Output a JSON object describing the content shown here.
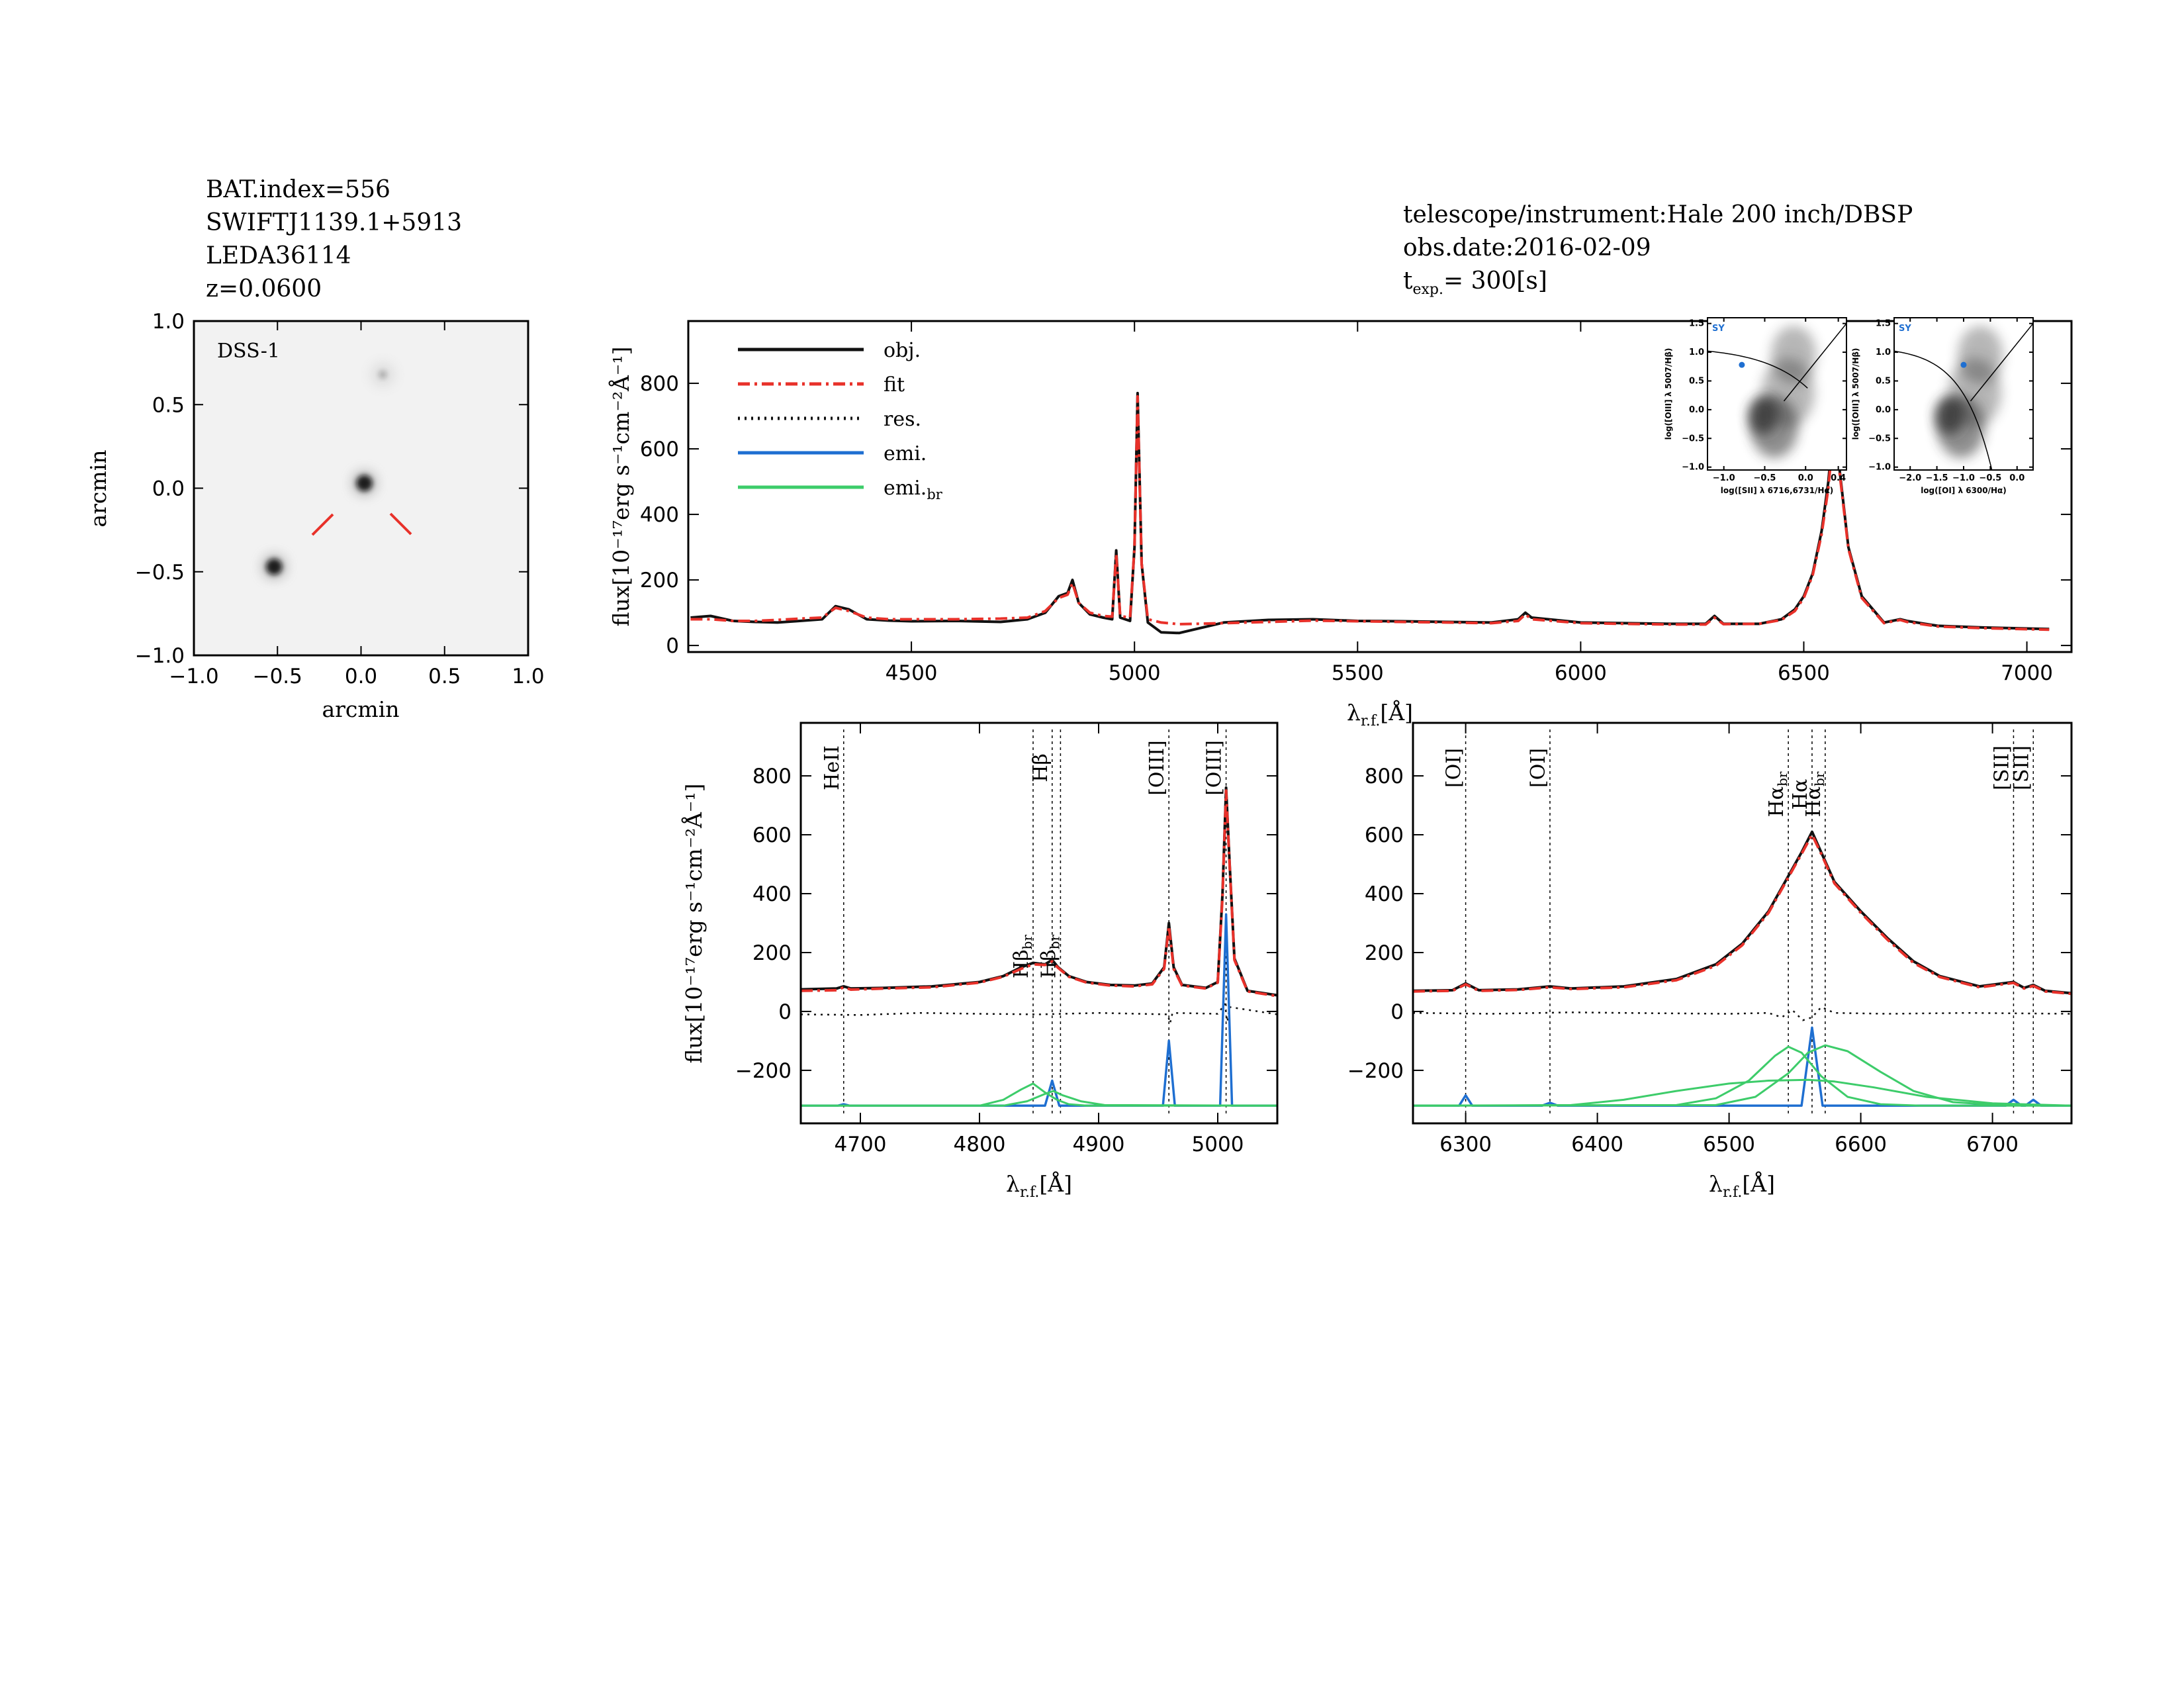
{
  "header": {
    "left_lines": [
      "BAT.index=556",
      "SWIFTJ1139.1+5913",
      "LEDA36114",
      "z=0.0600"
    ],
    "right_lines": [
      "telescope/instrument:Hale 200 inch/DBSP",
      "obs.date:2016-02-09"
    ],
    "texp_prefix": "t",
    "texp_sub": "exp.",
    "texp_value": "=  300[s]"
  },
  "legend": {
    "items": [
      {
        "label": "obj.",
        "sub": "",
        "color": "#111111",
        "style": "solid"
      },
      {
        "label": "fit",
        "sub": "",
        "color": "#e8312a",
        "style": "dashdot"
      },
      {
        "label": "res.",
        "sub": "",
        "color": "#111111",
        "style": "dotted"
      },
      {
        "label": "emi.",
        "sub": "",
        "color": "#1f6fd1",
        "style": "solid"
      },
      {
        "label": "emi.",
        "sub": "br",
        "color": "#3dcc6a",
        "style": "solid"
      }
    ]
  },
  "colors": {
    "obj": "#111111",
    "fit": "#e8312a",
    "emi": "#1f6fd1",
    "emi_br": "#3dcc6a"
  },
  "flux_label": "flux[10⁻¹⁷erg s⁻¹cm⁻²Å⁻¹]",
  "lambda_label": "λ",
  "lambda_sub": "r.f.",
  "lambda_unit": "[Å]",
  "chart_data": [
    {
      "id": "image_cutout",
      "type": "heatmap",
      "label": "DSS-1",
      "xlabel": "arcmin",
      "ylabel": "arcmin",
      "xlim": [
        -1.0,
        1.0
      ],
      "ylim": [
        -1.0,
        1.0
      ],
      "xticks": [
        -1.0,
        -0.5,
        0.0,
        0.5,
        1.0
      ],
      "yticks": [
        -1.0,
        -0.5,
        0.0,
        0.5,
        1.0
      ],
      "sources": [
        {
          "x": 0.02,
          "y": 0.03,
          "strength": 1.0
        },
        {
          "x": -0.52,
          "y": -0.47,
          "strength": 1.0
        },
        {
          "x": 0.13,
          "y": 0.68,
          "strength": 0.3
        }
      ]
    },
    {
      "id": "full_spectrum",
      "type": "line",
      "xlim": [
        4000,
        7100
      ],
      "ylim": [
        -20,
        990
      ],
      "xticks": [
        4500,
        5000,
        5500,
        6000,
        6500,
        7000
      ],
      "yticks": [
        0,
        200,
        400,
        600,
        800
      ],
      "series": [
        {
          "name": "obj.",
          "x": [
            4005,
            4050,
            4100,
            4150,
            4200,
            4250,
            4300,
            4330,
            4360,
            4400,
            4450,
            4500,
            4600,
            4700,
            4760,
            4800,
            4830,
            4850,
            4861,
            4875,
            4900,
            4930,
            4950,
            4959,
            4968,
            4990,
            5000,
            5007,
            5016,
            5030,
            5060,
            5100,
            5200,
            5300,
            5400,
            5500,
            5600,
            5700,
            5800,
            5860,
            5876,
            5890,
            6000,
            6100,
            6200,
            6280,
            6300,
            6320,
            6400,
            6450,
            6480,
            6500,
            6520,
            6540,
            6555,
            6563,
            6570,
            6580,
            6600,
            6630,
            6680,
            6716,
            6731,
            6800,
            6900,
            7050
          ],
          "y": [
            85,
            90,
            75,
            72,
            70,
            75,
            80,
            120,
            110,
            80,
            76,
            74,
            75,
            72,
            80,
            100,
            150,
            160,
            200,
            130,
            95,
            85,
            80,
            290,
            85,
            75,
            300,
            770,
            250,
            70,
            40,
            38,
            70,
            78,
            80,
            75,
            74,
            72,
            70,
            80,
            100,
            85,
            70,
            68,
            66,
            66,
            90,
            66,
            66,
            80,
            110,
            150,
            220,
            350,
            500,
            620,
            740,
            540,
            300,
            150,
            70,
            80,
            75,
            60,
            55,
            50
          ]
        },
        {
          "name": "fit",
          "x": [
            4005,
            4050,
            4100,
            4150,
            4200,
            4250,
            4300,
            4330,
            4360,
            4400,
            4450,
            4500,
            4600,
            4700,
            4760,
            4800,
            4830,
            4850,
            4861,
            4875,
            4900,
            4930,
            4950,
            4959,
            4968,
            4990,
            5000,
            5007,
            5016,
            5030,
            5060,
            5100,
            5200,
            5300,
            5400,
            5500,
            5600,
            5700,
            5800,
            5860,
            5876,
            5890,
            6000,
            6100,
            6200,
            6280,
            6300,
            6320,
            6400,
            6450,
            6480,
            6500,
            6520,
            6540,
            6555,
            6563,
            6570,
            6580,
            6600,
            6630,
            6680,
            6716,
            6731,
            6800,
            6900,
            7050
          ],
          "y": [
            80,
            80,
            75,
            75,
            78,
            82,
            85,
            115,
            105,
            85,
            80,
            80,
            80,
            82,
            85,
            105,
            145,
            155,
            190,
            130,
            100,
            90,
            88,
            280,
            90,
            85,
            300,
            760,
            250,
            80,
            70,
            65,
            68,
            72,
            76,
            74,
            72,
            70,
            68,
            75,
            95,
            80,
            68,
            66,
            64,
            64,
            85,
            65,
            66,
            78,
            105,
            145,
            215,
            340,
            480,
            600,
            720,
            530,
            295,
            145,
            68,
            78,
            72,
            58,
            53,
            48
          ]
        }
      ]
    },
    {
      "id": "hbeta_region",
      "type": "line",
      "xlim": [
        4650,
        5050
      ],
      "ylim": [
        -380,
        980
      ],
      "xticks": [
        4700,
        4800,
        4900,
        5000
      ],
      "yticks": [
        -200,
        0,
        200,
        400,
        600,
        800
      ],
      "line_markers": [
        {
          "label": "HeII",
          "sub": "",
          "x": 4686
        },
        {
          "label": "Hβ",
          "sub": "br",
          "x": 4845
        },
        {
          "label": "Hβ",
          "sub": "",
          "x": 4861
        },
        {
          "label": "Hβ",
          "sub": "br",
          "x": 4868
        },
        {
          "label": "[OIII]",
          "sub": "",
          "x": 4959
        },
        {
          "label": "[OIII]",
          "sub": "",
          "x": 5007
        }
      ],
      "series": [
        {
          "name": "obj.",
          "x": [
            4650,
            4680,
            4686,
            4692,
            4720,
            4760,
            4800,
            4820,
            4835,
            4845,
            4855,
            4861,
            4866,
            4875,
            4890,
            4910,
            4930,
            4945,
            4955,
            4959,
            4963,
            4970,
            4990,
            5000,
            5004,
            5007,
            5010,
            5014,
            5025,
            5050
          ],
          "y": [
            75,
            78,
            85,
            78,
            80,
            85,
            100,
            120,
            150,
            165,
            160,
            175,
            150,
            120,
            100,
            90,
            88,
            95,
            150,
            300,
            150,
            90,
            80,
            100,
            400,
            760,
            500,
            180,
            70,
            55
          ]
        },
        {
          "name": "fit",
          "x": [
            4650,
            4680,
            4686,
            4692,
            4720,
            4760,
            4800,
            4820,
            4835,
            4845,
            4855,
            4861,
            4866,
            4875,
            4890,
            4910,
            4930,
            4945,
            4955,
            4959,
            4963,
            4970,
            4990,
            5000,
            5004,
            5007,
            5010,
            5014,
            5025,
            5050
          ],
          "y": [
            70,
            72,
            82,
            74,
            78,
            82,
            98,
            118,
            145,
            160,
            158,
            170,
            148,
            118,
            98,
            88,
            85,
            92,
            145,
            290,
            145,
            88,
            78,
            98,
            390,
            750,
            495,
            175,
            68,
            52
          ]
        },
        {
          "name": "res.",
          "x": [
            4650,
            4700,
            4750,
            4800,
            4850,
            4900,
            4958,
            4960,
            4962,
            5000,
            5006,
            5008,
            5010,
            5050
          ],
          "y": [
            -10,
            -12,
            -5,
            -8,
            -10,
            -5,
            -10,
            -40,
            -5,
            -8,
            25,
            -35,
            15,
            -10
          ]
        },
        {
          "name": "emi.",
          "x": [
            4650,
            4681,
            4686,
            4691,
            4855,
            4861,
            4867,
            4954,
            4959,
            4964,
            5002,
            5007,
            5012,
            5050
          ],
          "y": [
            -320,
            -320,
            -315,
            -320,
            -320,
            -235,
            -320,
            -320,
            -100,
            -320,
            -320,
            330,
            -320,
            -320
          ]
        },
        {
          "name": "emi.br",
          "x": [
            4650,
            4800,
            4820,
            4835,
            4845,
            4855,
            4865,
            4875,
            4890,
            4910,
            5050
          ],
          "y": [
            -320,
            -320,
            -300,
            -265,
            -245,
            -275,
            -300,
            -315,
            -320,
            -320,
            -320
          ]
        },
        {
          "name": "emi.br",
          "x": [
            4650,
            4820,
            4840,
            4855,
            4862,
            4870,
            4885,
            4905,
            5050
          ],
          "y": [
            -320,
            -320,
            -305,
            -280,
            -270,
            -285,
            -305,
            -318,
            -320
          ]
        }
      ]
    },
    {
      "id": "halpha_region",
      "type": "line",
      "xlim": [
        6260,
        6760
      ],
      "ylim": [
        -380,
        980
      ],
      "xticks": [
        6300,
        6400,
        6500,
        6600,
        6700
      ],
      "yticks": [
        -200,
        0,
        200,
        400,
        600,
        800
      ],
      "line_markers": [
        {
          "label": "[OI]",
          "sub": "",
          "x": 6300
        },
        {
          "label": "[OI]",
          "sub": "",
          "x": 6364
        },
        {
          "label": "Hα",
          "sub": "br",
          "x": 6545
        },
        {
          "label": "Hα",
          "sub": "",
          "x": 6563
        },
        {
          "label": "Hα",
          "sub": "br",
          "x": 6573
        },
        {
          "label": "[SII]",
          "sub": "",
          "x": 6716
        },
        {
          "label": "[SII]",
          "sub": "",
          "x": 6731
        }
      ],
      "series": [
        {
          "name": "obj.",
          "x": [
            6260,
            6290,
            6300,
            6310,
            6340,
            6364,
            6380,
            6420,
            6460,
            6490,
            6510,
            6530,
            6545,
            6555,
            6563,
            6570,
            6580,
            6600,
            6620,
            6640,
            6660,
            6690,
            6716,
            6724,
            6731,
            6740,
            6760
          ],
          "y": [
            70,
            72,
            95,
            72,
            75,
            85,
            78,
            85,
            110,
            160,
            230,
            340,
            460,
            540,
            610,
            540,
            440,
            340,
            250,
            170,
            120,
            85,
            100,
            80,
            90,
            70,
            62
          ]
        },
        {
          "name": "fit",
          "x": [
            6260,
            6290,
            6300,
            6310,
            6340,
            6364,
            6380,
            6420,
            6460,
            6490,
            6510,
            6530,
            6545,
            6555,
            6563,
            6570,
            6580,
            6600,
            6620,
            6640,
            6660,
            6690,
            6716,
            6724,
            6731,
            6740,
            6760
          ],
          "y": [
            68,
            70,
            92,
            70,
            73,
            82,
            76,
            82,
            106,
            155,
            225,
            335,
            455,
            535,
            600,
            535,
            435,
            335,
            245,
            165,
            117,
            82,
            97,
            78,
            87,
            68,
            60
          ]
        },
        {
          "name": "res.",
          "x": [
            6260,
            6320,
            6380,
            6440,
            6500,
            6530,
            6540,
            6548,
            6556,
            6563,
            6570,
            6580,
            6620,
            6680,
            6760
          ],
          "y": [
            -5,
            -8,
            -3,
            -6,
            -8,
            -5,
            -20,
            5,
            -30,
            -20,
            15,
            -5,
            -8,
            -5,
            -8
          ]
        },
        {
          "name": "emi.",
          "x": [
            6260,
            6295,
            6300,
            6305,
            6358,
            6364,
            6370,
            6555,
            6563,
            6571,
            6710,
            6716,
            6722,
            6725,
            6731,
            6737,
            6760
          ],
          "y": [
            -320,
            -320,
            -285,
            -320,
            -320,
            -310,
            -320,
            -320,
            -55,
            -320,
            -320,
            -300,
            -320,
            -320,
            -300,
            -320,
            -320
          ]
        },
        {
          "name": "emi.br",
          "x": [
            6260,
            6380,
            6420,
            6460,
            6500,
            6530,
            6560,
            6580,
            6610,
            6650,
            6700,
            6760
          ],
          "y": [
            -320,
            -318,
            -300,
            -270,
            -245,
            -235,
            -232,
            -238,
            -258,
            -290,
            -312,
            -320
          ]
        },
        {
          "name": "emi.br",
          "x": [
            6260,
            6460,
            6490,
            6515,
            6535,
            6545,
            6555,
            6570,
            6590,
            6615,
            6645,
            6680,
            6760
          ],
          "y": [
            -320,
            -318,
            -295,
            -235,
            -150,
            -120,
            -140,
            -220,
            -290,
            -315,
            -320,
            -320,
            -320
          ]
        },
        {
          "name": "emi.br",
          "x": [
            6260,
            6490,
            6520,
            6545,
            6560,
            6573,
            6590,
            6615,
            6640,
            6670,
            6710,
            6760
          ],
          "y": [
            -320,
            -318,
            -290,
            -210,
            -140,
            -115,
            -135,
            -205,
            -270,
            -308,
            -319,
            -320
          ]
        }
      ]
    },
    {
      "id": "bpt_sii",
      "type": "scatter",
      "label": "SY",
      "xlabel": "log([SII] λ 6716,6731/Hα)",
      "ylabel": "log([OIII] λ 5007/Hβ)",
      "xlim": [
        -1.2,
        0.5
      ],
      "ylim": [
        -1.05,
        1.6
      ],
      "xticks": [
        -1.0,
        -0.5,
        0.0,
        0.4
      ],
      "xtick_labels": [
        "−1.0",
        "−0.5",
        "0.0",
        "0.4"
      ],
      "yticks": [
        1.5,
        1.0,
        0.5,
        0.0,
        -0.5,
        -1.0
      ],
      "ytick_labels": [
        "1.5",
        "1.0",
        "0.5",
        "0.0",
        "−0.5",
        "−1.0"
      ],
      "point": {
        "x": -0.78,
        "y": 0.78
      }
    },
    {
      "id": "bpt_oi",
      "type": "scatter",
      "label": "SY",
      "xlabel": "log([OI] λ 6300/Hα)",
      "ylabel": "log([OIII] λ 5007/Hβ)",
      "xlim": [
        -2.3,
        0.3
      ],
      "ylim": [
        -1.05,
        1.6
      ],
      "xticks": [
        -2.0,
        -1.5,
        -1.0,
        -0.5,
        0.0
      ],
      "xtick_labels": [
        "−2.0",
        "−1.5",
        "−1.0",
        "−0.5",
        "0.0"
      ],
      "yticks": [
        1.5,
        1.0,
        0.5,
        0.0,
        -0.5,
        -1.0
      ],
      "ytick_labels": [
        "1.5",
        "1.0",
        "0.5",
        "0.0",
        "−0.5",
        "−1.0"
      ],
      "point": {
        "x": -1.0,
        "y": 0.78
      }
    }
  ]
}
